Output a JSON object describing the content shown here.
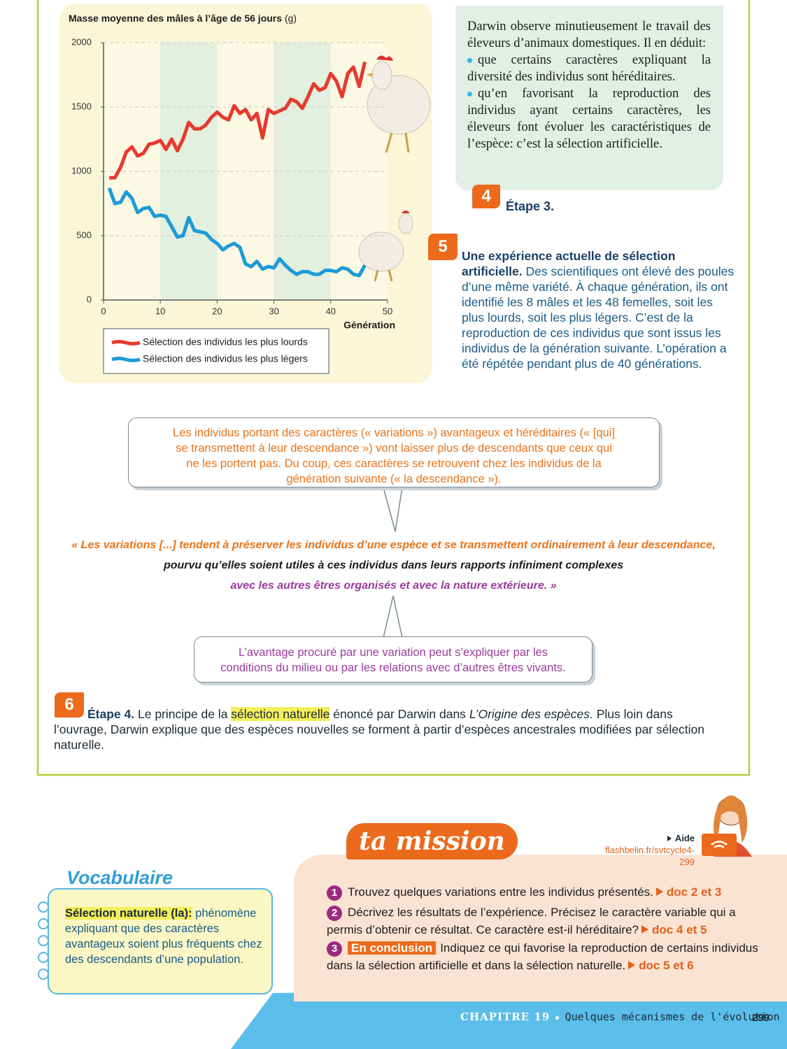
{
  "chart_data": {
    "type": "line",
    "y_label": "Masse moyenne des mâles à l’âge de 56 jours",
    "y_unit": "(g)",
    "x_label": "Génération",
    "x": [
      1,
      2,
      3,
      4,
      5,
      6,
      7,
      8,
      9,
      10,
      11,
      12,
      13,
      14,
      15,
      16,
      17,
      18,
      19,
      20,
      21,
      22,
      23,
      24,
      25,
      26,
      27,
      28,
      29,
      30,
      31,
      32,
      33,
      34,
      35,
      36,
      37,
      38,
      39,
      40,
      41,
      42,
      43,
      44,
      45,
      46
    ],
    "series": [
      {
        "name": "Sélection des individus les plus lourds",
        "color": "#e63a2e",
        "values": [
          950,
          950,
          1030,
          1150,
          1190,
          1120,
          1140,
          1210,
          1220,
          1240,
          1170,
          1250,
          1160,
          1250,
          1380,
          1330,
          1330,
          1360,
          1420,
          1460,
          1420,
          1400,
          1510,
          1450,
          1480,
          1400,
          1450,
          1260,
          1480,
          1450,
          1470,
          1490,
          1560,
          1540,
          1490,
          1580,
          1680,
          1630,
          1650,
          1760,
          1700,
          1580,
          1760,
          1810,
          1660,
          1850
        ]
      },
      {
        "name": "Sélection des individus les plus légers",
        "color": "#1e9ad6",
        "values": [
          870,
          750,
          760,
          840,
          790,
          680,
          710,
          720,
          650,
          660,
          650,
          570,
          490,
          500,
          640,
          540,
          530,
          520,
          470,
          440,
          390,
          420,
          440,
          410,
          280,
          260,
          300,
          240,
          260,
          250,
          320,
          270,
          230,
          200,
          220,
          220,
          200,
          200,
          230,
          230,
          220,
          250,
          240,
          200,
          190,
          270
        ]
      }
    ],
    "xlim": [
      0,
      50
    ],
    "xticks": [
      0,
      10,
      20,
      30,
      40,
      50
    ],
    "ylim": [
      0,
      2000
    ],
    "yticks": [
      0,
      500,
      1000,
      1500,
      2000
    ],
    "grid": true
  },
  "doc4": {
    "intro": "Darwin observe minutieusement le travail des éleveurs d’animaux domestiques. Il en déduit:",
    "bullets": [
      "que certains caractères expliquant la diversité des individus sont héréditaires.",
      "qu’en favorisant la reproduction des individus ayant certains caractères, les éleveurs font évoluer les caractéristiques de l’espèce: c’est la sélection artificielle."
    ],
    "number": "4",
    "caption": "Étape 3."
  },
  "doc5": {
    "number": "5",
    "title": "Une expérience actuelle de sélection artificielle.",
    "text": "Des scientifiques ont élevé des poules d’une même variété. À chaque génération, ils ont identifié les 8 mâles et les 48 femelles, soit les plus lourds, soit les plus légers. C’est de la reproduction de ces individus que sont issus les individus de la génération suivante. L’opération a été répétée pendant plus de 40 générations."
  },
  "bubble_top": "Les individus portant des caractères (« variations ») avantageux et héréditaires (« [qui] se transmettent à leur descendance ») vont laisser plus de descendants que ceux qui ne les portent pas. Du coup, ces caractères se retrouvent chez les individus de la génération suivante (« la descendance »).",
  "quote": {
    "part1": "« Les variations [...] tendent à préserver les individus d’une espèce et se transmettent ordinairement à leur descendance,",
    "part2": "pourvu qu’elles soient utiles à ces individus dans leurs rapports infiniment complexes",
    "part3": "avec les autres êtres organisés et avec la nature extérieure. »"
  },
  "bubble_bottom": "L’avantage procuré par une variation peut s’expliquer par les conditions du milieu ou par les relations avec d’autres êtres vivants.",
  "doc6": {
    "number": "6",
    "label": "Étape 4.",
    "text_before": "Le principe de la",
    "highlight": "sélection naturelle",
    "text_middle": "énoncé par Darwin dans",
    "book": "L’Origine des espèces.",
    "text_after": "Plus loin dans l’ouvrage, Darwin explique que des espèces nouvelles se forment à partir d’espèces ancestrales modifiées par sélection naturelle."
  },
  "vocabulaire": {
    "title": "Vocabulaire",
    "term": "Sélection naturelle (la):",
    "definition": "phénomène expliquant que des caractères avantageux soient plus fréquents chez des descendants d’une population."
  },
  "mission": {
    "title": "ta mission",
    "help_label": "Aide",
    "help_url": "flashbelin.fr/svtcycle4-299",
    "questions": [
      {
        "number": "1",
        "text": "Trouvez quelques variations entre les individus présentés.",
        "ref": "doc 2 et 3"
      },
      {
        "number": "2",
        "text": "Décrivez les résultats de l’expérience. Précisez le caractère variable qui a permis d’obtenir ce résultat. Ce caractère est-il héréditaire?",
        "ref": "doc 4 et 5"
      },
      {
        "number": "3",
        "tag": "En conclusion",
        "text": "Indiquez ce qui favorise la reproduction de certains individus dans la sélection artificielle et dans la sélection naturelle.",
        "ref": "doc 5 et 6"
      }
    ]
  },
  "footer": {
    "chapter": "CHAPITRE 19",
    "title": "Quelques mécanismes de l'évolution",
    "page": "299"
  }
}
